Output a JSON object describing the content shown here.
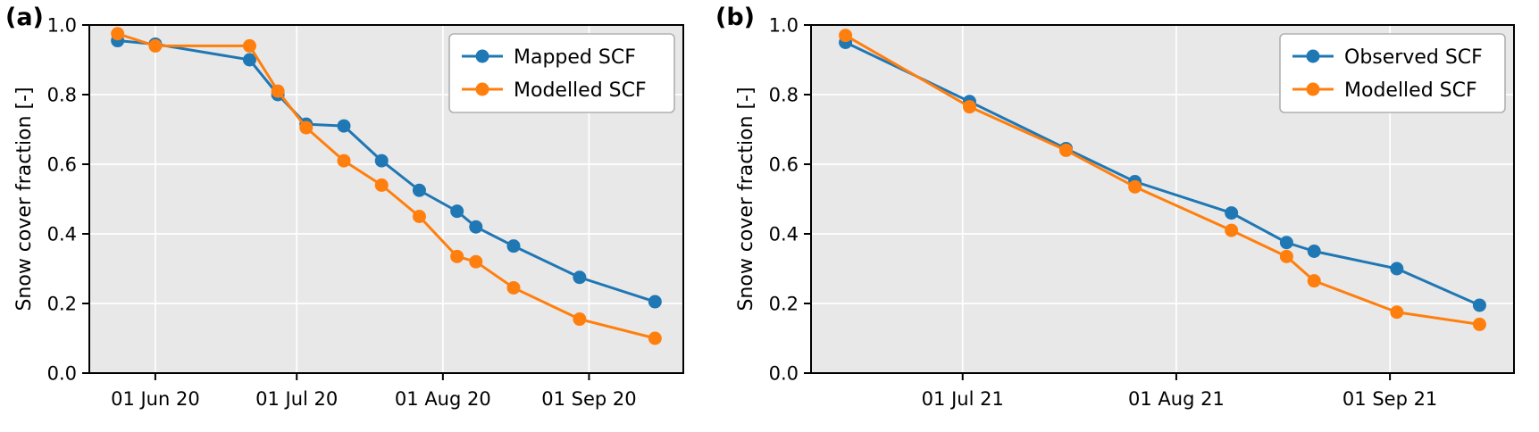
{
  "figure": {
    "background_color": "#ffffff",
    "plot_background_color": "#e8e8e8",
    "grid_color": "#ffffff",
    "spine_color": "#000000",
    "legend_edge_color": "#b0b0b0",
    "legend_face_color": "#ffffff"
  },
  "chart_data": [
    {
      "type": "line",
      "panel_label": "(a)",
      "title": "",
      "xlabel": "",
      "ylabel": "Snow cover fraction [-]",
      "ylim": [
        0.0,
        1.0
      ],
      "grid": true,
      "legend_position": "upper right",
      "x_unit": "days since 2020-05-01 (dates estimated from axis)",
      "xlim": [
        17,
        143
      ],
      "xticks": [
        {
          "pos": 31,
          "label": "01 Jun 20"
        },
        {
          "pos": 61,
          "label": "01 Jul 20"
        },
        {
          "pos": 92,
          "label": "01 Aug 20"
        },
        {
          "pos": 123,
          "label": "01 Sep 20"
        }
      ],
      "yticks": [
        {
          "pos": 0.0,
          "label": "0.0"
        },
        {
          "pos": 0.2,
          "label": "0.2"
        },
        {
          "pos": 0.4,
          "label": "0.4"
        },
        {
          "pos": 0.6,
          "label": "0.6"
        },
        {
          "pos": 0.8,
          "label": "0.8"
        },
        {
          "pos": 1.0,
          "label": "1.0"
        }
      ],
      "series": [
        {
          "name": "Mapped SCF",
          "color": "#1f77b4",
          "marker": "circle",
          "x": [
            23,
            31,
            51,
            57,
            63,
            71,
            79,
            87,
            95,
            99,
            107,
            121,
            137
          ],
          "y": [
            0.955,
            0.945,
            0.9,
            0.8,
            0.715,
            0.71,
            0.61,
            0.525,
            0.465,
            0.42,
            0.365,
            0.275,
            0.205
          ]
        },
        {
          "name": "Modelled SCF",
          "color": "#ff7f0e",
          "marker": "circle",
          "x": [
            23,
            31,
            51,
            57,
            63,
            71,
            79,
            87,
            95,
            99,
            107,
            121,
            137
          ],
          "y": [
            0.975,
            0.94,
            0.94,
            0.81,
            0.705,
            0.61,
            0.54,
            0.45,
            0.335,
            0.32,
            0.245,
            0.155,
            0.1
          ]
        }
      ]
    },
    {
      "type": "line",
      "panel_label": "(b)",
      "title": "",
      "xlabel": "",
      "ylabel": "Snow cover fraction [-]",
      "ylim": [
        0.0,
        1.0
      ],
      "grid": true,
      "legend_position": "upper right",
      "x_unit": "days since 2021-06-01 (dates estimated from axis)",
      "xlim": [
        8,
        110
      ],
      "xticks": [
        {
          "pos": 30,
          "label": "01 Jul 21"
        },
        {
          "pos": 61,
          "label": "01 Aug 21"
        },
        {
          "pos": 92,
          "label": "01 Sep 21"
        }
      ],
      "yticks": [
        {
          "pos": 0.0,
          "label": "0.0"
        },
        {
          "pos": 0.2,
          "label": "0.2"
        },
        {
          "pos": 0.4,
          "label": "0.4"
        },
        {
          "pos": 0.6,
          "label": "0.6"
        },
        {
          "pos": 0.8,
          "label": "0.8"
        },
        {
          "pos": 1.0,
          "label": "1.0"
        }
      ],
      "series": [
        {
          "name": "Observed SCF",
          "color": "#1f77b4",
          "marker": "circle",
          "x": [
            13,
            31,
            45,
            55,
            69,
            77,
            81,
            93,
            105
          ],
          "y": [
            0.95,
            0.78,
            0.645,
            0.55,
            0.46,
            0.375,
            0.35,
            0.3,
            0.195
          ]
        },
        {
          "name": "Modelled SCF",
          "color": "#ff7f0e",
          "marker": "circle",
          "x": [
            13,
            31,
            45,
            55,
            69,
            77,
            81,
            93,
            105
          ],
          "y": [
            0.97,
            0.765,
            0.64,
            0.535,
            0.41,
            0.335,
            0.265,
            0.175,
            0.14
          ]
        }
      ]
    }
  ]
}
